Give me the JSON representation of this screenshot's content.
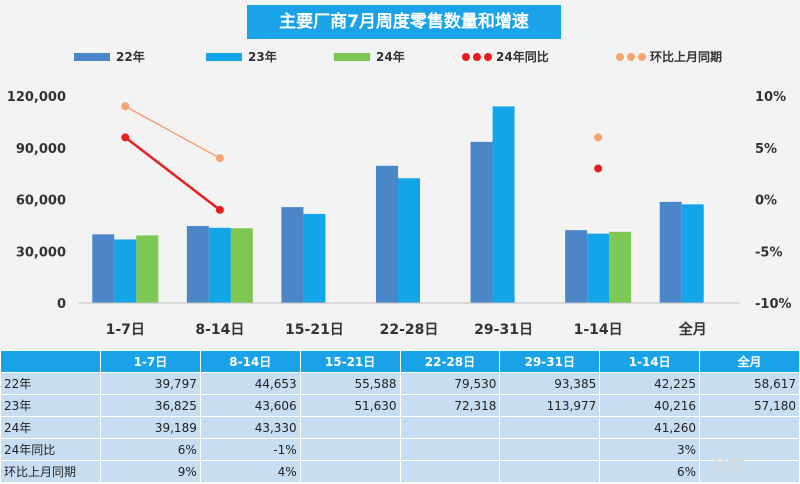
{
  "title": "主要厂商7月周度零售数量和增速",
  "watermark": "易车",
  "legend": {
    "s22": "22年",
    "s23": "23年",
    "s24": "24年",
    "yoy": "24年同比",
    "mom": "环比上月同期"
  },
  "colors": {
    "s22": "#4a86c8",
    "s23": "#14a5e9",
    "s24": "#7dc855",
    "yoy": "#e61e1e",
    "mom": "#f5a46e",
    "header": "#1aa3e8",
    "cell": "#c7ddf2"
  },
  "chart_data": {
    "type": "bar",
    "categories": [
      "1-7日",
      "8-14日",
      "15-21日",
      "22-28日",
      "29-31日",
      "1-14日",
      "全月"
    ],
    "series": [
      {
        "name": "22年",
        "values": [
          39797,
          44653,
          55588,
          79530,
          93385,
          42225,
          58617
        ]
      },
      {
        "name": "23年",
        "values": [
          36825,
          43606,
          51630,
          72318,
          113977,
          40216,
          57180
        ]
      },
      {
        "name": "24年",
        "values": [
          39189,
          43330,
          null,
          null,
          null,
          41260,
          null
        ]
      }
    ],
    "line_series": [
      {
        "name": "24年同比",
        "axis": "right",
        "values": [
          6,
          -1,
          null,
          null,
          null,
          3,
          null
        ]
      },
      {
        "name": "环比上月同期",
        "axis": "right",
        "values": [
          9,
          4,
          null,
          null,
          null,
          6,
          null
        ]
      }
    ],
    "ylim": [
      0,
      120000
    ],
    "yticks": [
      0,
      30000,
      60000,
      90000,
      120000
    ],
    "ytick_labels": [
      "0",
      "30,000",
      "60,000",
      "90,000",
      "120,000"
    ],
    "y2lim": [
      -10,
      10
    ],
    "y2ticks": [
      -10,
      -5,
      0,
      5,
      10
    ],
    "y2tick_labels": [
      "-10%",
      "-5%",
      "0%",
      "5%",
      "10%"
    ],
    "legend_position": "top"
  },
  "table": {
    "headers": [
      "1-7日",
      "8-14日",
      "15-21日",
      "22-28日",
      "29-31日",
      "1-14日",
      "全月"
    ],
    "rows": [
      {
        "label": "22年",
        "cells": [
          "39,797",
          "44,653",
          "55,588",
          "79,530",
          "93,385",
          "42,225",
          "58,617"
        ]
      },
      {
        "label": "23年",
        "cells": [
          "36,825",
          "43,606",
          "51,630",
          "72,318",
          "113,977",
          "40,216",
          "57,180"
        ]
      },
      {
        "label": "24年",
        "cells": [
          "39,189",
          "43,330",
          "",
          "",
          "",
          "41,260",
          ""
        ]
      },
      {
        "label": "24年同比",
        "cells": [
          "6%",
          "-1%",
          "",
          "",
          "",
          "3%",
          ""
        ]
      },
      {
        "label": "环比上月同期",
        "cells": [
          "9%",
          "4%",
          "",
          "",
          "",
          "6%",
          ""
        ]
      }
    ]
  }
}
